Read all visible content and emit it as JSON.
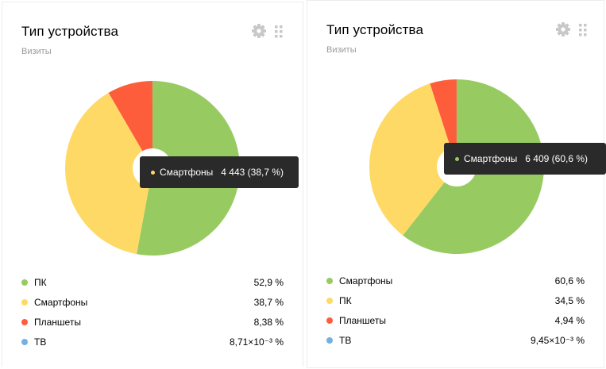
{
  "widgets": [
    {
      "title": "Тип устройства",
      "subtitle": "Визиты",
      "icons": {
        "settings": "gear-icon",
        "drag": "drag-handle-icon"
      },
      "chart_data": {
        "type": "pie",
        "categories": [
          "ПК",
          "Смартфоны",
          "Планшеты",
          "ТВ"
        ],
        "values": [
          52.9,
          38.7,
          8.38,
          0.00871
        ],
        "colors": [
          "#97cb62",
          "#ffd966",
          "#fe5d3b",
          "#74b0e4"
        ]
      },
      "tooltip": {
        "label": "Смартфоны",
        "value": "4 443 (38,7 %)",
        "color": "#ffd966"
      },
      "legend": [
        {
          "name": "ПК",
          "value": "52,9 %",
          "color": "#97cb62"
        },
        {
          "name": "Смартфоны",
          "value": "38,7 %",
          "color": "#ffd966"
        },
        {
          "name": "Планшеты",
          "value": "8,38 %",
          "color": "#fe5d3b"
        },
        {
          "name": "ТВ",
          "value": "8,71×10⁻³ %",
          "color": "#74b0e4"
        }
      ]
    },
    {
      "title": "Тип устройства",
      "subtitle": "Визиты",
      "icons": {
        "settings": "gear-icon",
        "drag": "drag-handle-icon"
      },
      "chart_data": {
        "type": "pie",
        "categories": [
          "Смартфоны",
          "ПК",
          "Планшеты",
          "ТВ"
        ],
        "values": [
          60.6,
          34.5,
          4.94,
          0.00945
        ],
        "colors": [
          "#97cb62",
          "#ffd966",
          "#fe5d3b",
          "#74b0e4"
        ]
      },
      "tooltip": {
        "label": "Смартфоны",
        "value": "6 409 (60,6 %)",
        "color": "#97cb62"
      },
      "legend": [
        {
          "name": "Смартфоны",
          "value": "60,6 %",
          "color": "#97cb62"
        },
        {
          "name": "ПК",
          "value": "34,5 %",
          "color": "#ffd966"
        },
        {
          "name": "Планшеты",
          "value": "4,94 %",
          "color": "#fe5d3b"
        },
        {
          "name": "ТВ",
          "value": "9,45×10⁻³ %",
          "color": "#74b0e4"
        }
      ]
    }
  ]
}
